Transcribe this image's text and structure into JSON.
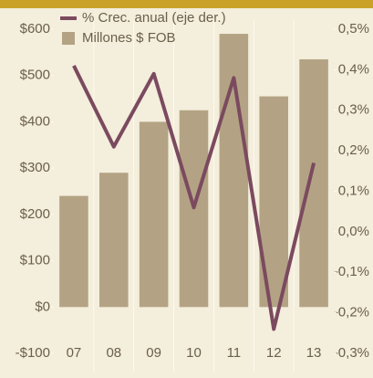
{
  "chart_data": {
    "type": "bar-line",
    "categories": [
      "07",
      "08",
      "09",
      "10",
      "11",
      "12",
      "13"
    ],
    "series": [
      {
        "name": "Millones $ FOB",
        "type": "bar",
        "color": "#b3a384",
        "values": [
          240,
          290,
          400,
          425,
          590,
          455,
          535
        ]
      },
      {
        "name": "% Crec. anual (eje der.)",
        "type": "line",
        "axis": "y2",
        "color": "#7b4a5f",
        "values": [
          0.41,
          0.21,
          0.39,
          0.06,
          0.38,
          -0.24,
          0.17
        ]
      }
    ],
    "ylim": [
      -100,
      600
    ],
    "yticks": [
      {
        "value": -100,
        "label": "-$100"
      },
      {
        "value": 0,
        "label": "$0"
      },
      {
        "value": 100,
        "label": "$100"
      },
      {
        "value": 200,
        "label": "$200"
      },
      {
        "value": 300,
        "label": "$300"
      },
      {
        "value": 400,
        "label": "$400"
      },
      {
        "value": 500,
        "label": "$500"
      },
      {
        "value": 600,
        "label": "$600"
      }
    ],
    "y2lim": [
      -0.3,
      0.5
    ],
    "y2ticks": [
      {
        "value": -0.3,
        "label": "-0,3%"
      },
      {
        "value": -0.2,
        "label": "-0,2%"
      },
      {
        "value": -0.1,
        "label": "-0,1%"
      },
      {
        "value": 0,
        "label": "0,0%"
      },
      {
        "value": 0.1,
        "label": "0,1%"
      },
      {
        "value": 0.2,
        "label": "0,2%"
      },
      {
        "value": 0.3,
        "label": "0,3%"
      },
      {
        "value": 0.4,
        "label": "0,4%"
      },
      {
        "value": 0.5,
        "label": "0,5%"
      }
    ],
    "legend": "top-left"
  }
}
